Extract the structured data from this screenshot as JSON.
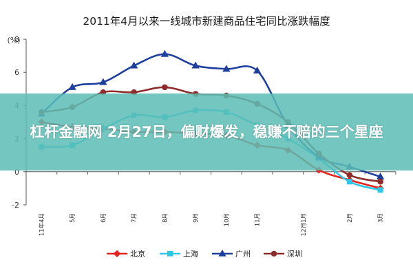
{
  "overlay": {
    "text": "杠杆金融网 2月27日，偏财爆发，稳赚不赔的三个星座"
  },
  "chart_data": {
    "type": "line",
    "title": "2011年4月以来一线城市新建商品住宅同比涨跌幅度",
    "unit_label": "(%)",
    "ylim": [
      -2,
      8
    ],
    "yticks": [
      -2,
      0,
      2,
      4,
      6,
      8
    ],
    "grid": false,
    "legend_position": "bottom",
    "categories": [
      "11年4月",
      "5月",
      "6月",
      "7月",
      "8月",
      "9月",
      "10月",
      "11月",
      "12月",
      "1月",
      "2月",
      "3月"
    ],
    "x_tick_labels": [
      "11年4月",
      "5月",
      "6月",
      "7月",
      "8月",
      "9月",
      "10月",
      "11月",
      "12月1月",
      "2月",
      "3月"
    ],
    "series": [
      {
        "name": "北京",
        "color": "#e8211a",
        "marker": "diamond",
        "values": [
          3.0,
          2.7,
          2.6,
          2.4,
          2.4,
          2.3,
          2.2,
          1.6,
          1.3,
          0.1,
          -0.5,
          -1.0
        ]
      },
      {
        "name": "上海",
        "color": "#2ec6e6",
        "marker": "square",
        "values": [
          1.5,
          1.6,
          2.6,
          3.4,
          3.3,
          3.7,
          3.6,
          2.8,
          2.0,
          0.8,
          -0.6,
          -1.1
        ]
      },
      {
        "name": "广州",
        "color": "#1e3f9e",
        "marker": "triangle",
        "values": [
          3.5,
          5.1,
          5.4,
          6.4,
          7.1,
          6.4,
          6.2,
          6.1,
          2.8,
          0.9,
          0.3,
          -0.3
        ]
      },
      {
        "name": "深圳",
        "color": "#8e2b2b",
        "marker": "circle",
        "values": [
          3.6,
          3.9,
          4.8,
          4.8,
          5.1,
          4.7,
          4.6,
          4.1,
          3.0,
          1.1,
          -0.2,
          -0.6
        ]
      }
    ]
  }
}
